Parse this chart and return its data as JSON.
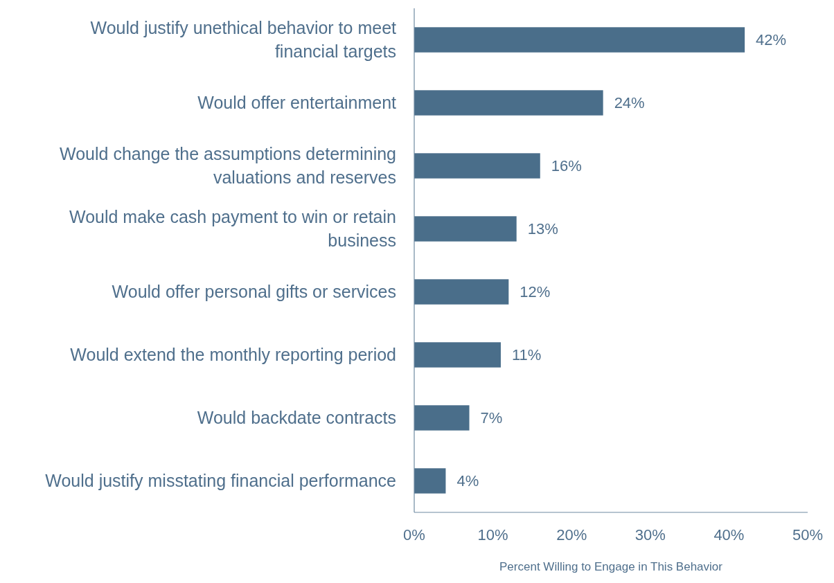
{
  "chart_data": {
    "type": "bar",
    "orientation": "horizontal",
    "xlabel": "Percent Willing to Engage in This Behavior",
    "categories": [
      "Would justify unethical behavior to meet financial targets",
      "Would offer entertainment",
      "Would change the assumptions determining valuations and reserves",
      "Would make cash payment to win or retain business",
      "Would offer personal gifts or services",
      "Would extend the monthly reporting period",
      "Would backdate contracts",
      "Would justify misstating financial performance"
    ],
    "values": [
      42,
      24,
      16,
      13,
      12,
      11,
      7,
      4
    ],
    "value_labels": [
      "42%",
      "24%",
      "16%",
      "13%",
      "12%",
      "11%",
      "7%",
      "4%"
    ],
    "color": "#4a6e8a",
    "xlim": [
      0,
      50
    ],
    "xticks": [
      {
        "value": 0,
        "label": "0%"
      },
      {
        "value": 10,
        "label": "10%"
      },
      {
        "value": 20,
        "label": "20%"
      },
      {
        "value": 30,
        "label": "30%"
      },
      {
        "value": 40,
        "label": "40%"
      },
      {
        "value": 50,
        "label": "50%"
      }
    ],
    "grid": false
  }
}
